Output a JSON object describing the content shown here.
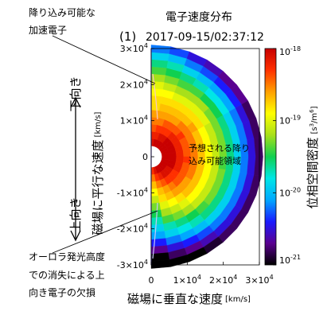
{
  "panel_label": "(1)",
  "title": "電子速度分布",
  "timestamp": "2017-09-15/02:37:12",
  "annotations": {
    "top_left": [
      "降り込み可能な",
      "加速電子"
    ],
    "bottom_left": [
      "オーロラ発光高度",
      "での消失による上",
      "向き電子の欠損"
    ],
    "center": [
      "予想される降り",
      "込み可能領域"
    ]
  },
  "side_labels": {
    "down": "下向き",
    "up": "上向き"
  },
  "colors": {
    "scale": [
      "#000000",
      "#5a0090",
      "#1a1aff",
      "#00a8ff",
      "#00e6e6",
      "#10d050",
      "#a8e01a",
      "#ffff00",
      "#ffa000",
      "#ff3000",
      "#c80000"
    ]
  },
  "chart_data": {
    "type": "heatmap",
    "geometry": "half-polar velocity distribution (pitch angle 0–180°)",
    "xlabel": "磁場に垂直な速度",
    "xlabel_unit": "[km/s]",
    "ylabel": "磁場に平行な速度",
    "ylabel_unit": "[km/s]",
    "x_ticks": [
      {
        "value": 0,
        "mantissa": "0",
        "exp": ""
      },
      {
        "value": 10000,
        "mantissa": "1×10",
        "exp": "4"
      },
      {
        "value": 20000,
        "mantissa": "2×10",
        "exp": "4"
      },
      {
        "value": 30000,
        "mantissa": "3×10",
        "exp": "4"
      }
    ],
    "y_ticks": [
      {
        "value": 30000,
        "mantissa": "3×10",
        "exp": "4"
      },
      {
        "value": 20000,
        "mantissa": "2×10",
        "exp": "4"
      },
      {
        "value": 10000,
        "mantissa": "1×10",
        "exp": "4"
      },
      {
        "value": 0,
        "mantissa": "0",
        "exp": ""
      },
      {
        "value": -10000,
        "mantissa": "-1×10",
        "exp": "4"
      },
      {
        "value": -20000,
        "mantissa": "-2×10",
        "exp": "4"
      },
      {
        "value": -30000,
        "mantissa": "-3×10",
        "exp": "4"
      }
    ],
    "xlim": [
      0,
      30000
    ],
    "ylim": [
      -30000,
      30000
    ],
    "colorbar": {
      "label": "位相空間密度",
      "unit_prefix": "[s",
      "unit_mid": "/m",
      "unit_suffix": "]",
      "unit_exp": "3",
      "unit_exp2": "6",
      "scale": "log",
      "range": [
        1e-21,
        1e-18
      ],
      "ticks": [
        {
          "value": 1e-18,
          "mantissa": "10",
          "exp": "-18"
        },
        {
          "value": 1e-19,
          "mantissa": "10",
          "exp": "-19"
        },
        {
          "value": 1e-20,
          "mantissa": "10",
          "exp": "-20"
        },
        {
          "value": 1e-21,
          "mantissa": "10",
          "exp": "-21"
        }
      ]
    },
    "speed_bins_kms": [
      4000,
      6000,
      8000,
      10000,
      12000,
      14000,
      16000,
      18000,
      20000,
      22000,
      24000,
      26000,
      28000,
      30000
    ],
    "pitch_angle_bins_deg": [
      5,
      15,
      25,
      35,
      45,
      55,
      65,
      75,
      85,
      95,
      105,
      115,
      125,
      135,
      145,
      155,
      165,
      175
    ],
    "log10_density_by_speed_row": [
      [
        -18.1,
        -18.0,
        -18.0,
        -17.9,
        -17.9,
        -17.8,
        -17.8,
        -17.8,
        -17.8,
        -17.8,
        -17.8,
        -17.8,
        -17.9,
        -17.9,
        -18.0,
        -18.0,
        -18.1,
        -18.3
      ],
      [
        -18.2,
        -18.2,
        -18.1,
        -18.1,
        -18.0,
        -18.0,
        -18.0,
        -18.0,
        -18.0,
        -18.0,
        -18.0,
        -18.0,
        -18.1,
        -18.1,
        -18.1,
        -18.2,
        -18.3,
        -18.5
      ],
      [
        -18.4,
        -18.3,
        -18.3,
        -18.3,
        -18.2,
        -18.2,
        -18.2,
        -18.2,
        -18.2,
        -18.2,
        -18.2,
        -18.2,
        -18.3,
        -18.3,
        -18.3,
        -18.4,
        -18.5,
        -18.7
      ],
      [
        -18.5,
        -18.5,
        -18.4,
        -18.4,
        -18.4,
        -18.3,
        -18.4,
        -18.4,
        -18.4,
        -18.3,
        -18.4,
        -18.4,
        -18.4,
        -18.4,
        -18.5,
        -18.6,
        -18.7,
        -18.9
      ],
      [
        -18.6,
        -18.6,
        -18.6,
        -18.6,
        -18.5,
        -18.5,
        -18.5,
        -18.5,
        -18.5,
        -18.5,
        -18.5,
        -18.5,
        -18.6,
        -18.6,
        -18.6,
        -18.7,
        -18.8,
        -19.1
      ],
      [
        -18.8,
        -18.7,
        -18.7,
        -18.7,
        -18.7,
        -18.6,
        -18.7,
        -18.7,
        -18.7,
        -18.7,
        -18.7,
        -18.7,
        -18.7,
        -18.7,
        -18.8,
        -18.9,
        -19.0,
        -19.3
      ],
      [
        -18.8,
        -18.8,
        -18.8,
        -18.8,
        -18.8,
        -18.8,
        -18.9,
        -18.9,
        -18.9,
        -18.9,
        -18.9,
        -18.9,
        -18.9,
        -18.9,
        -19.0,
        -19.1,
        -19.2,
        -19.5
      ],
      [
        -18.9,
        -18.9,
        -19.0,
        -19.0,
        -19.0,
        -19.0,
        -19.1,
        -19.1,
        -19.1,
        -19.1,
        -19.1,
        -19.1,
        -19.1,
        -19.1,
        -19.2,
        -19.3,
        -19.4,
        -19.7
      ],
      [
        -19.0,
        -19.1,
        -19.2,
        -19.2,
        -19.2,
        -19.3,
        -19.3,
        -19.3,
        -19.3,
        -19.4,
        -19.3,
        -19.3,
        -19.3,
        -19.4,
        -19.5,
        -19.6,
        -19.7,
        -19.9
      ],
      [
        -19.2,
        -19.3,
        -19.4,
        -19.4,
        -19.5,
        -19.5,
        -19.6,
        -19.6,
        -19.6,
        -19.6,
        -19.6,
        -19.6,
        -19.6,
        -19.6,
        -19.7,
        -19.8,
        -19.9,
        -20.1
      ],
      [
        -19.4,
        -19.5,
        -19.6,
        -19.7,
        -19.8,
        -19.8,
        -19.9,
        -19.9,
        -19.9,
        -19.9,
        -19.9,
        -19.9,
        -19.9,
        -19.9,
        -20.0,
        -20.1,
        -20.2,
        -20.4
      ],
      [
        -19.6,
        -19.7,
        -19.9,
        -20.0,
        -20.1,
        -20.1,
        -20.2,
        -20.2,
        -20.2,
        -20.2,
        -20.2,
        -20.2,
        -20.2,
        -20.2,
        -20.3,
        -20.4,
        -20.5,
        -20.7
      ],
      [
        -19.9,
        -20.0,
        -20.2,
        -20.3,
        -20.4,
        -20.4,
        -20.5,
        -20.5,
        -20.5,
        -20.5,
        -20.5,
        -20.5,
        -20.5,
        -20.5,
        -20.6,
        -20.7,
        -20.8,
        -21.0
      ],
      [
        -20.2,
        -20.3,
        -20.5,
        -20.6,
        -20.7,
        -20.7,
        -20.8,
        -20.8,
        -20.8,
        -20.8,
        -20.8,
        -20.8,
        -20.8,
        -20.8,
        -20.9,
        -21.0,
        -21.0,
        -21.0
      ]
    ]
  }
}
